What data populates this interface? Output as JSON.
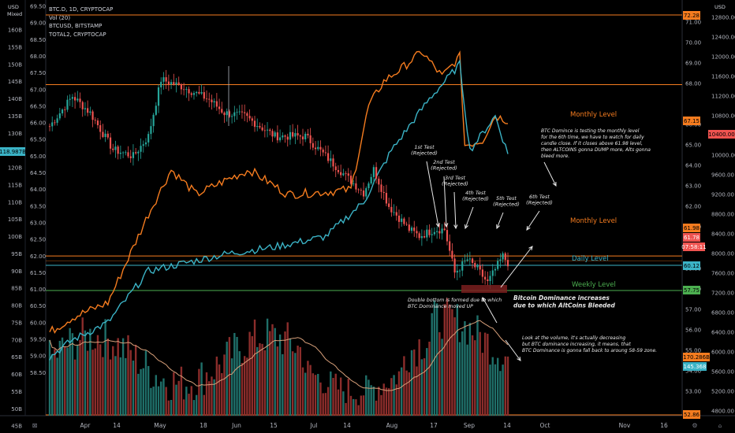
{
  "header": {
    "symbol_line": "BTC.D, 1D, CRYPTOCAP",
    "line2": "Vol (20)",
    "line3": "BTCUSD, BITSTAMP",
    "line4": "TOTAL2, CRYPTOCAP",
    "left_currency": "USD",
    "left_mode": "Mixed",
    "right_currency": "USD"
  },
  "axes": {
    "left_ticks": [
      "160B",
      "155B",
      "150B",
      "145B",
      "140B",
      "135B",
      "130B",
      "125B",
      "120B",
      "115B",
      "110B",
      "105B",
      "100B",
      "95B",
      "90B",
      "85B",
      "80B",
      "75B",
      "70B",
      "65B",
      "60B",
      "55B",
      "50B",
      "45B"
    ],
    "center_ticks": [
      "69.50",
      "69.00",
      "68.50",
      "68.00",
      "67.50",
      "67.00",
      "66.50",
      "66.00",
      "65.50",
      "65.00",
      "64.50",
      "64.00",
      "63.50",
      "63.00",
      "62.50",
      "62.00",
      "61.50",
      "61.00",
      "60.50",
      "60.00",
      "59.50",
      "59.00",
      "58.50"
    ],
    "right_inner_ticks": [
      "71.00",
      "70.00",
      "69.00",
      "68.00",
      "66.00",
      "65.00",
      "64.00",
      "63.00",
      "62.00",
      "61.00",
      "60.00",
      "59.00",
      "58.00",
      "57.00",
      "56.00",
      "55.00",
      "54.00",
      "53.00"
    ],
    "right_outer_ticks": [
      "12800.00",
      "12400.00",
      "12000.00",
      "11600.00",
      "11200.00",
      "10800.00",
      "10000.00",
      "9600.00",
      "9200.00",
      "8800.00",
      "8400.00",
      "8000.00",
      "7600.00",
      "7200.00",
      "6800.00",
      "6400.00",
      "6000.00",
      "5600.00",
      "5200.00",
      "4800.00"
    ],
    "x_ticks": [
      "Apr",
      "14",
      "May",
      "18",
      "Jun",
      "15",
      "Jul",
      "14",
      "Aug",
      "17",
      "Sep",
      "14",
      "Oct",
      "Nov",
      "16"
    ]
  },
  "badges": {
    "top_orange": "72.28",
    "left_teal": "118.987B",
    "orange_6715": "67.15",
    "right_10400": "10400.00",
    "orange_6198": "61.98",
    "red_6178": "61.78",
    "timer": "07:58:11",
    "teal_6012": "60.12",
    "green_5775": "57.75",
    "vol_170": "170.286B",
    "vol_145": "145.368",
    "bottom_5286": "52.86"
  },
  "levels": {
    "monthly_upper": "Monthly Level",
    "monthly_lower": "Monthly Level",
    "daily": "Daily Level",
    "weekly": "Weekly Level"
  },
  "annotations": {
    "test1": [
      "1st Test",
      "(Rejected)"
    ],
    "test2": [
      "2nd Test",
      "(Rejected)"
    ],
    "test3": [
      "3rd Test",
      "(Rejected)"
    ],
    "test4": [
      "4th Test",
      "(Rejected)"
    ],
    "test5": [
      "5th Test",
      "(Rejected)"
    ],
    "test6": [
      "6th Test",
      "(Rejected)"
    ],
    "note_top": [
      "BTC Domince is testing the monthly level",
      "for the 6th time, we have to watch for daily",
      "candle close. If it closes above 61.98 level,",
      "then ALTCOINS gonna DUMP more, Alts gonna",
      "bleed more."
    ],
    "double_bottom": [
      "Double bottom is formed due to which",
      "BTC Dominance moved UP"
    ],
    "bleed": [
      "Bitcoin Dominance increases",
      "due to which AltCoins Bleeded"
    ],
    "volume_note": [
      "Look at the volume, it's actually decreasing",
      "but BTC dominance increasing, it means, that",
      "BTC Dominance is gonna fall back to aroung 58-59  zone."
    ]
  },
  "colors": {
    "up": "#26a69a",
    "down": "#ef5350",
    "orange": "#f57c1f",
    "teal": "#3bb3c6",
    "volume_ma": "#d8a07a",
    "weekly_level": "#4caf50",
    "background": "#000000"
  },
  "chart_data": {
    "type": "candlestick",
    "title": "BTC.D, 1D, CRYPTOCAP",
    "price_range": [
      58.3,
      69.9
    ],
    "levels": [
      {
        "name": "Monthly Level",
        "value": 67.15
      },
      {
        "name": "Monthly Level",
        "value": 61.98
      },
      {
        "name": "Daily Level",
        "value": 60.12
      },
      {
        "name": "Weekly Level",
        "value": 57.75
      }
    ],
    "btc_dominance_anchors": [
      [
        "Mar 23",
        65.9
      ],
      [
        "Apr 1",
        66.8
      ],
      [
        "Apr 8",
        66.3
      ],
      [
        "Apr 17",
        65.2
      ],
      [
        "Apr 25",
        65.0
      ],
      [
        "May 1",
        65.6
      ],
      [
        "May 6",
        67.3
      ],
      [
        "May 14",
        67.1
      ],
      [
        "May 25",
        66.7
      ],
      [
        "May 31",
        66.3
      ],
      [
        "Jun 8",
        66.2
      ],
      [
        "Jun 20",
        65.6
      ],
      [
        "Jul 2",
        65.6
      ],
      [
        "Jul 10",
        65.0
      ],
      [
        "Jul 18",
        64.4
      ],
      [
        "Jul 25",
        63.9
      ],
      [
        "Jul 29",
        64.6
      ],
      [
        "Aug 4",
        63.5
      ],
      [
        "Aug 12",
        62.8
      ],
      [
        "Aug 16",
        62.6
      ],
      [
        "Aug 22",
        62.8
      ],
      [
        "Aug 26",
        62.8
      ],
      [
        "Aug 30",
        61.5
      ],
      [
        "Sep 4",
        61.9
      ],
      [
        "Sep 8",
        61.6
      ],
      [
        "Sep 12",
        61.2
      ],
      [
        "Sep 18",
        62.0
      ],
      [
        "Sep 20",
        61.8
      ]
    ],
    "btcusd_anchors_usd": [
      [
        "Mar 23",
        6400
      ],
      [
        "Apr 1",
        6700
      ],
      [
        "Apr 15",
        7000
      ],
      [
        "May 1",
        8800
      ],
      [
        "May 10",
        9700
      ],
      [
        "May 20",
        9200
      ],
      [
        "Jun 1",
        9500
      ],
      [
        "Jun 10",
        9700
      ],
      [
        "Jun 25",
        9200
      ],
      [
        "Jul 10",
        9250
      ],
      [
        "Jul 20",
        9300
      ],
      [
        "Jul 27",
        11000
      ],
      [
        "Aug 2",
        11500
      ],
      [
        "Aug 10",
        11800
      ],
      [
        "Aug 17",
        12100
      ],
      [
        "Aug 25",
        11600
      ],
      [
        "Sep 1",
        12000
      ],
      [
        "Sep 3",
        10200
      ],
      [
        "Sep 10",
        10300
      ],
      [
        "Sep 15",
        10800
      ],
      [
        "Sep 20",
        10700
      ]
    ],
    "total2_anchors_b": [
      [
        "Mar 23",
        60
      ],
      [
        "Apr 1",
        65
      ],
      [
        "Apr 15",
        70
      ],
      [
        "May 1",
        85
      ],
      [
        "Jun 1",
        90
      ],
      [
        "Jun 20",
        92
      ],
      [
        "Jul 10",
        95
      ],
      [
        "Jul 25",
        105
      ],
      [
        "Aug 5",
        120
      ],
      [
        "Aug 20",
        135
      ],
      [
        "Sep 1",
        145
      ],
      [
        "Sep 5",
        120
      ],
      [
        "Sep 15",
        130
      ],
      [
        "Sep 20",
        119
      ]
    ],
    "volume_b": {
      "latest": 145.368,
      "ma": 170.286
    }
  }
}
